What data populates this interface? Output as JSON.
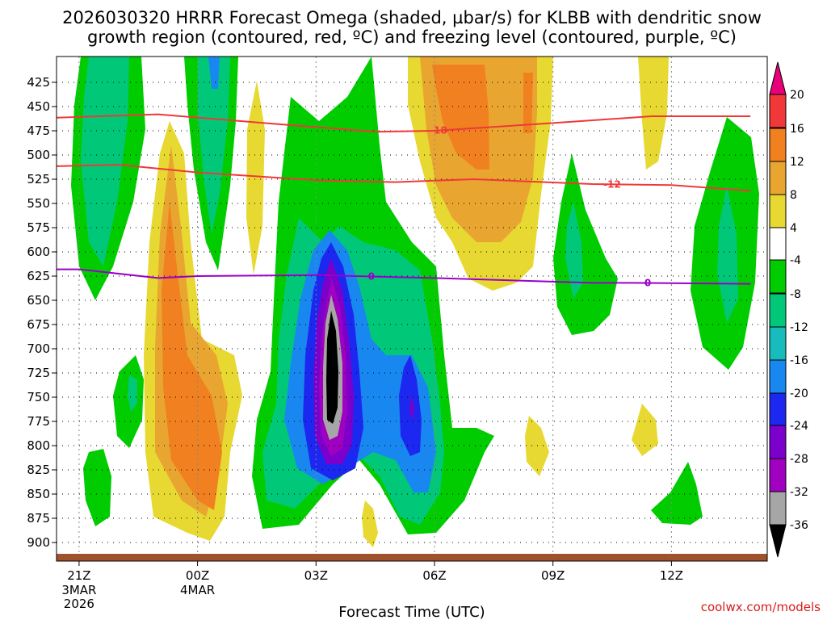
{
  "chart_data": {
    "type": "heatmap",
    "title_line1": "2026030320 HRRR Forecast Omega (shaded, µbar/s) for KLBB with dendritic snow",
    "title_line2": "growth region (contoured, red, ºC) and freezing level (contoured, purple, ºC)",
    "xlabel": "Forecast Time (UTC)",
    "credit": "coolwx.com/models",
    "y_ticks": [
      425,
      450,
      475,
      500,
      525,
      550,
      575,
      600,
      625,
      650,
      675,
      700,
      725,
      750,
      775,
      800,
      825,
      850,
      875,
      900
    ],
    "x_ticks": [
      {
        "h": 1,
        "label": "21Z",
        "sub": [
          "3MAR",
          "2026"
        ]
      },
      {
        "h": 4,
        "label": "00Z",
        "sub": [
          "4MAR"
        ]
      },
      {
        "h": 7,
        "label": "03Z",
        "sub": []
      },
      {
        "h": 10,
        "label": "06Z",
        "sub": []
      },
      {
        "h": 13,
        "label": "09Z",
        "sub": []
      },
      {
        "h": 16,
        "label": "12Z",
        "sub": []
      }
    ],
    "x_range_hours": [
      0,
      18
    ],
    "colorbar": {
      "levels": [
        20,
        16,
        12,
        8,
        4,
        -4,
        -8,
        -12,
        -16,
        -20,
        -24,
        -28,
        -32,
        -36
      ],
      "colors": {
        "above_20": "#e8007a",
        "16_20": "#f03838",
        "12_16": "#f08020",
        "8_12": "#e8a630",
        "4_8": "#e8d832",
        "-4_4": "#ffffff",
        "-8_-4": "#00cc00",
        "-12_-8": "#00c878",
        "-16_-12": "#18bcbc",
        "-20_-16": "#1888f0",
        "-24_-20": "#1c28f0",
        "-28_-24": "#7c00cc",
        "-32_-28": "#a000c0",
        "-36_-32": "#a6a6a6",
        "below_-36": "#000000"
      }
    },
    "contours": {
      "dgz_top": {
        "label": "-18",
        "color": "#f03838",
        "points": [
          [
            0,
            462
          ],
          [
            3,
            458
          ],
          [
            6,
            468
          ],
          [
            8.5,
            476
          ],
          [
            10,
            475
          ],
          [
            13,
            467
          ],
          [
            15.5,
            460
          ],
          [
            18,
            460
          ]
        ]
      },
      "dgz_bottom": {
        "label": "-12",
        "color": "#f03838",
        "points": [
          [
            0,
            512
          ],
          [
            2,
            510
          ],
          [
            4,
            518
          ],
          [
            7,
            526
          ],
          [
            9,
            528
          ],
          [
            11,
            525
          ],
          [
            14,
            530
          ],
          [
            16,
            531
          ],
          [
            18,
            537
          ]
        ]
      },
      "freezing_level": {
        "label": "0",
        "color": "#9a00c8",
        "points": [
          [
            0,
            618
          ],
          [
            1,
            618
          ],
          [
            3,
            627
          ],
          [
            4,
            625
          ],
          [
            7,
            624
          ],
          [
            10,
            627
          ],
          [
            14,
            632
          ],
          [
            15,
            632
          ],
          [
            18,
            633
          ]
        ]
      }
    },
    "omega_features": [
      {
        "name": "core-rising",
        "center": {
          "h": 7.0,
          "p": 690
        },
        "peak": -40
      },
      {
        "name": "secondary-rising",
        "center": {
          "h": 9.0,
          "p": 705
        },
        "peak": -24
      },
      {
        "name": "upper-sinking",
        "center": {
          "h": 10.5,
          "p": 440
        },
        "peak": 14
      },
      {
        "name": "low-sinking",
        "center": {
          "h": 3.3,
          "p": 740
        },
        "peak": 14
      },
      {
        "name": "left-rising",
        "center": {
          "h": 1.0,
          "p": 480
        },
        "peak": -12
      },
      {
        "name": "right-rising",
        "center": {
          "h": 16.8,
          "p": 560
        },
        "peak": -12
      }
    ]
  }
}
